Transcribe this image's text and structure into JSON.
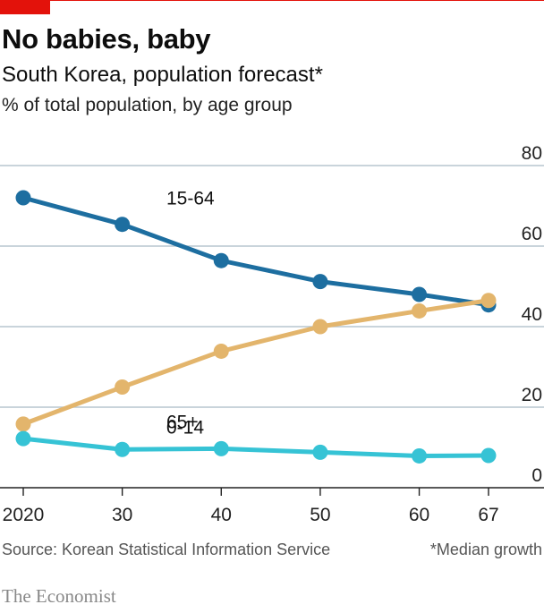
{
  "header": {
    "title": "No babies, baby",
    "subtitle": "South Korea, population forecast*",
    "unit_label": "% of total population, by age group"
  },
  "footer": {
    "source": "Source: Korean Statistical Information Service",
    "note": "*Median growth",
    "brand": "The Economist"
  },
  "colors": {
    "accent": "#e3120b",
    "grid": "#b7c6cf"
  },
  "chart_data": {
    "type": "line",
    "title": "No babies, baby",
    "subtitle": "South Korea, population forecast*",
    "ylabel": "% of total population, by age group",
    "x": [
      2020,
      2030,
      2040,
      2050,
      2060,
      2067
    ],
    "x_tick_labels": [
      "2020",
      "30",
      "40",
      "50",
      "60",
      "67"
    ],
    "ylim": [
      0,
      80
    ],
    "y_ticks": [
      0,
      20,
      40,
      60,
      80
    ],
    "y_axis_side": "right",
    "grid": true,
    "series": [
      {
        "name": "15-64",
        "color": "#1d6ea0",
        "values": [
          72,
          65.4,
          56.4,
          51.2,
          48,
          45.4
        ]
      },
      {
        "name": "65+",
        "color": "#e3b56c",
        "values": [
          15.8,
          25,
          33.9,
          40,
          43.9,
          46.5
        ]
      },
      {
        "name": "0-14",
        "color": "#36c3d5",
        "values": [
          12.2,
          9.5,
          9.7,
          8.8,
          7.9,
          8
        ]
      }
    ]
  }
}
